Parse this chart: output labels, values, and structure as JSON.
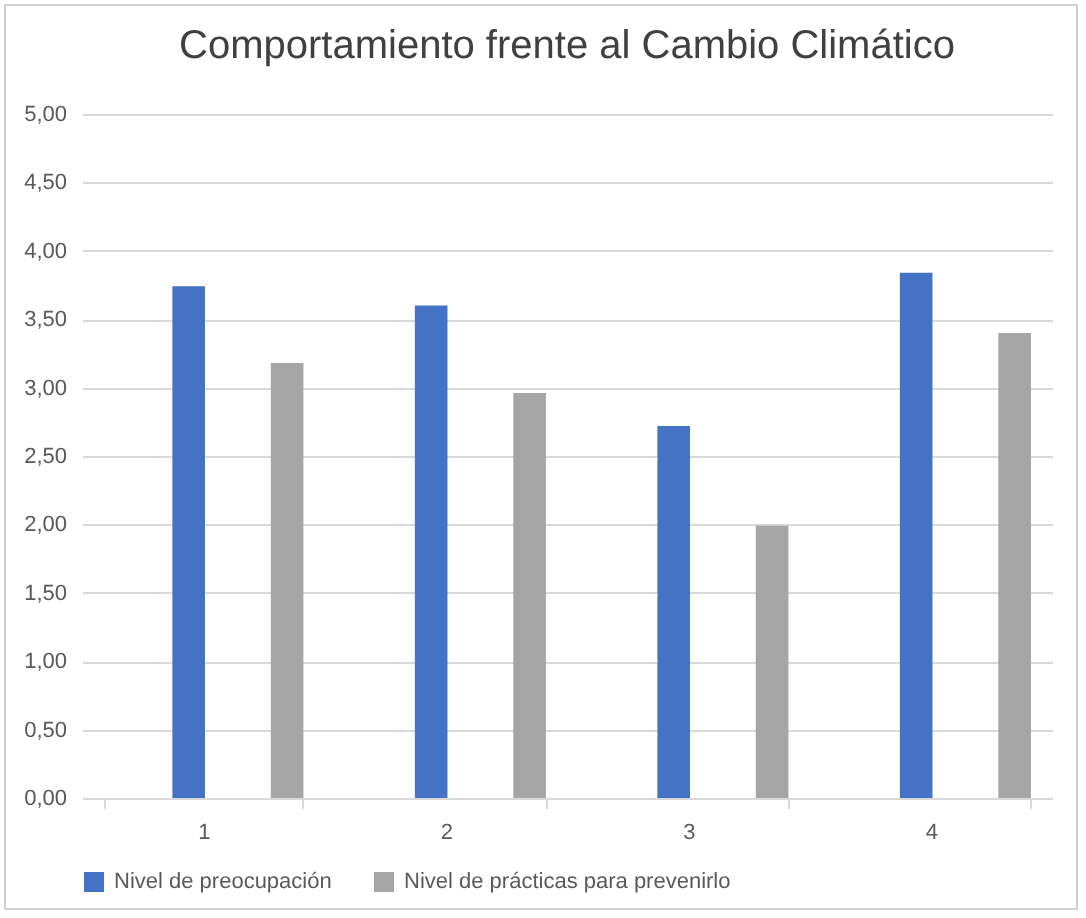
{
  "chart_data": {
    "type": "bar",
    "title": "Comportamiento frente al Cambio Climático",
    "categories": [
      "1",
      "2",
      "3",
      "4"
    ],
    "series": [
      {
        "name": "Nivel de preocupación",
        "color": "#4472c4",
        "values": [
          3.74,
          3.6,
          2.72,
          3.84
        ]
      },
      {
        "name": "Nivel de prácticas para prevenirlo",
        "color": "#a5a5a5",
        "values": [
          3.18,
          2.96,
          1.99,
          3.4
        ]
      }
    ],
    "ylim": [
      0,
      5
    ],
    "yticks": [
      {
        "value": 0,
        "label": "0,00"
      },
      {
        "value": 0.5,
        "label": "0,50"
      },
      {
        "value": 1,
        "label": "1,00"
      },
      {
        "value": 1.5,
        "label": "1,50"
      },
      {
        "value": 2,
        "label": "2,00"
      },
      {
        "value": 2.5,
        "label": "2,50"
      },
      {
        "value": 3,
        "label": "3,00"
      },
      {
        "value": 3.5,
        "label": "3,50"
      },
      {
        "value": 4,
        "label": "4,00"
      },
      {
        "value": 4.5,
        "label": "4,50"
      },
      {
        "value": 5,
        "label": "5,00"
      }
    ],
    "grid": "y",
    "legend": "bottom"
  }
}
